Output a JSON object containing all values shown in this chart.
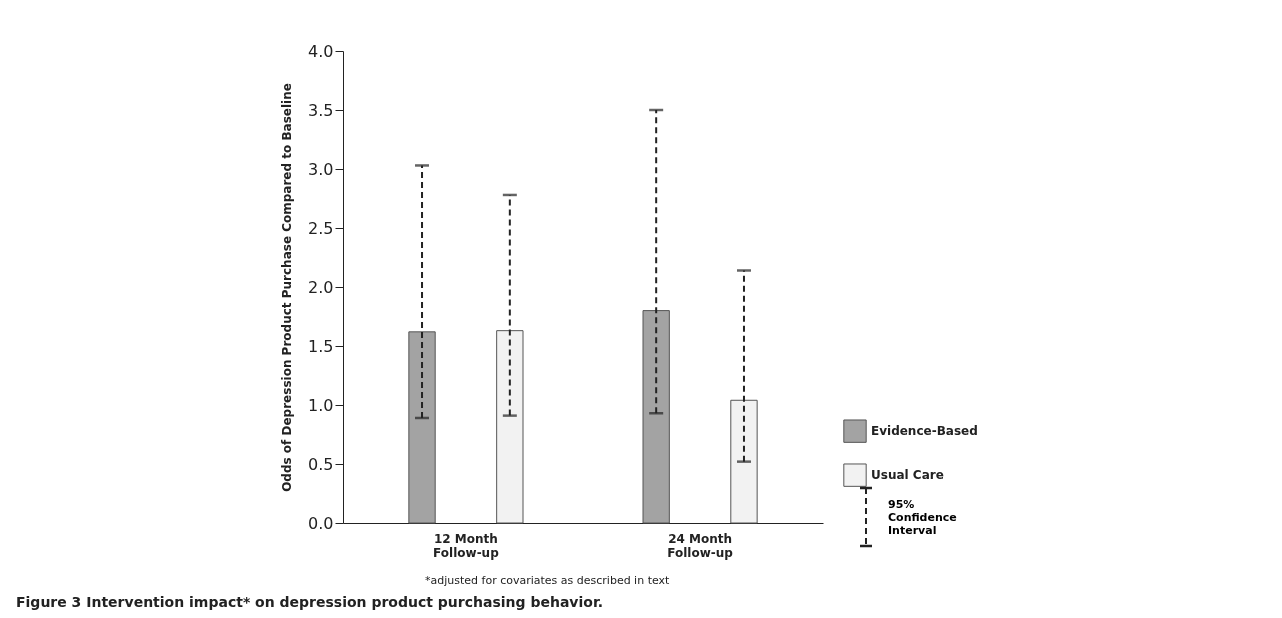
{
  "chart_data": {
    "type": "bar",
    "title": "Figure 3 Intervention impact* on depression product purchasing behavior.",
    "ylabel": "Odds of Depression Product Purchase Compared to Baseline",
    "categories": [
      "12 Month Follow-up",
      "24 Month Follow-up"
    ],
    "series": [
      {
        "name": "Evidence-Based",
        "color": "#a3a3a3",
        "values": [
          1.62,
          1.8
        ],
        "errors": [
          [
            0.89,
            3.03
          ],
          [
            0.93,
            3.5
          ]
        ]
      },
      {
        "name": "Usual Care",
        "color": "#f2f2f2",
        "values": [
          1.63,
          1.04
        ],
        "errors": [
          [
            0.91,
            2.78
          ],
          [
            0.52,
            2.14
          ]
        ]
      }
    ],
    "ylim": [
      0,
      4
    ],
    "yticks": [
      {
        "value": 0,
        "label": "0.0"
      },
      {
        "value": 0.5,
        "label": "0.5"
      },
      {
        "value": 1,
        "label": "1.0"
      },
      {
        "value": 1.5,
        "label": "1.5"
      },
      {
        "value": 2,
        "label": "2.0"
      },
      {
        "value": 2.5,
        "label": "2.5"
      },
      {
        "value": 3,
        "label": "3.0"
      },
      {
        "value": 3.5,
        "label": "3.5"
      },
      {
        "value": 4,
        "label": "4.0"
      }
    ],
    "grid": false,
    "legend": "right",
    "annotations": [
      "*adjusted for covariates as described in text",
      "95% Confidence Interval"
    ]
  }
}
